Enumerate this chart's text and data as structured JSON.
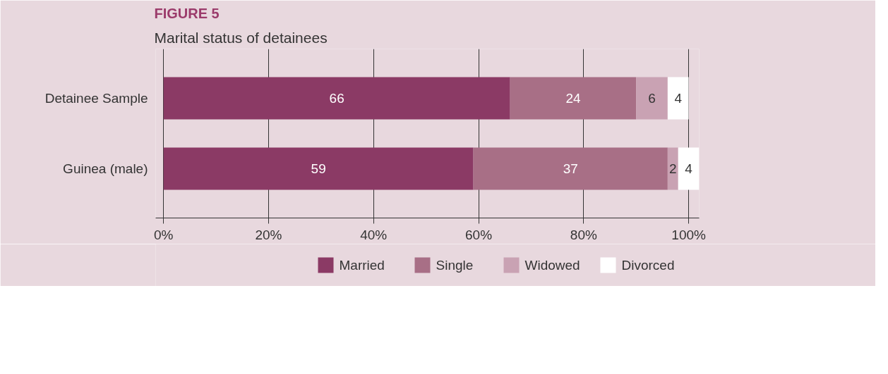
{
  "chart_data": {
    "type": "bar",
    "orientation": "horizontal",
    "stacked": true,
    "title": "FIGURE 5",
    "subtitle": "Marital status of detainees",
    "categories": [
      "Detainee Sample",
      "Guinea (male)"
    ],
    "series": [
      {
        "name": "Married",
        "color": "#8b3a65",
        "values": [
          66,
          59
        ]
      },
      {
        "name": "Single",
        "color": "#a86f86",
        "values": [
          24,
          37
        ]
      },
      {
        "name": "Widowed",
        "color": "#c9a2b3",
        "values": [
          6,
          2
        ]
      },
      {
        "name": "Divorced",
        "color": "#ffffff",
        "values": [
          4,
          4
        ]
      }
    ],
    "xlim": [
      -1.5,
      102
    ],
    "xticks": [
      {
        "value": 0,
        "label": "0%"
      },
      {
        "value": 20,
        "label": "20%"
      },
      {
        "value": 40,
        "label": "40%"
      },
      {
        "value": 60,
        "label": "60%"
      },
      {
        "value": 80,
        "label": "80%"
      },
      {
        "value": 100,
        "label": "100%"
      }
    ],
    "grid": "x",
    "legend": "bottom",
    "data_labels": true
  }
}
